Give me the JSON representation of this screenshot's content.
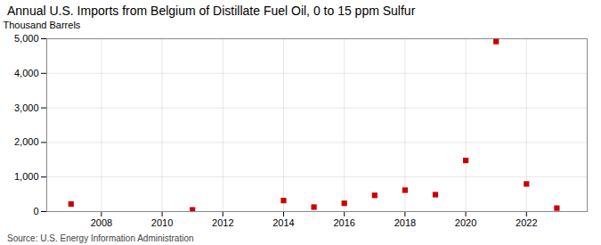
{
  "chart_data": {
    "type": "scatter",
    "title": "Annual U.S. Imports from Belgium of Distillate Fuel Oil, 0 to 15 ppm Sulfur",
    "ylabel": "Thousand Barrels",
    "caption": "Source: U.S. Energy Information Administration",
    "x": [
      2007,
      2011,
      2014,
      2015,
      2016,
      2017,
      2018,
      2019,
      2020,
      2021,
      2022,
      2023
    ],
    "values": [
      220,
      50,
      320,
      130,
      240,
      470,
      620,
      490,
      1480,
      4920,
      800,
      100
    ],
    "color": "#CC0000",
    "marker": "square",
    "xlim": [
      2006.2,
      2024.0
    ],
    "xticks": [
      2008,
      2010,
      2012,
      2014,
      2016,
      2018,
      2020,
      2022
    ],
    "ylim": [
      0,
      5000
    ],
    "yticks": [
      0,
      {
        "value": 1000,
        "label": "1,000"
      },
      {
        "value": 2000,
        "label": "2,000"
      },
      {
        "value": 3000,
        "label": "3,000"
      },
      {
        "value": 4000,
        "label": "4,000"
      },
      {
        "value": 5000,
        "label": "5,000"
      }
    ],
    "grid": true
  }
}
